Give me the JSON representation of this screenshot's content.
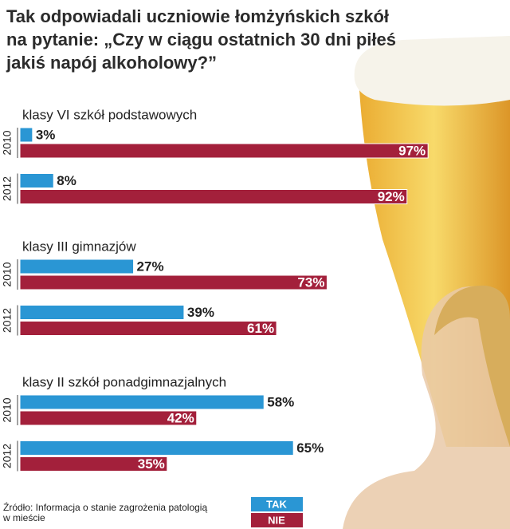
{
  "chart_data": {
    "type": "bar",
    "title": [
      "Tak odpowiadali uczniowie łomżyńskich szkół",
      "na pytanie: „Czy w ciągu ostatnich 30 dni piłeś",
      "jakiś napój alkoholowy?”"
    ],
    "groups": [
      "klasy VI szkół podstawowych",
      "klasy III gimnazjów",
      "klasy II szkół ponadgimnazjalnych"
    ],
    "categories": [
      "2010",
      "2012",
      "2010",
      "2012",
      "2010",
      "2012"
    ],
    "series": [
      {
        "name": "TAK",
        "color": "#2a96d4",
        "values": [
          3,
          8,
          27,
          39,
          58,
          65
        ],
        "value_labels": [
          "3%",
          "8%",
          "27%",
          "39%",
          "58%",
          "65%"
        ]
      },
      {
        "name": "NIE",
        "color": "#a3203b",
        "values": [
          97,
          92,
          73,
          61,
          42,
          35
        ],
        "value_labels": [
          "97%",
          "92%",
          "73%",
          "61%",
          "42%",
          "35%"
        ]
      }
    ],
    "source": [
      "Źródło: Informacja o stanie zagrożenia patologią",
      "w mieście"
    ]
  }
}
